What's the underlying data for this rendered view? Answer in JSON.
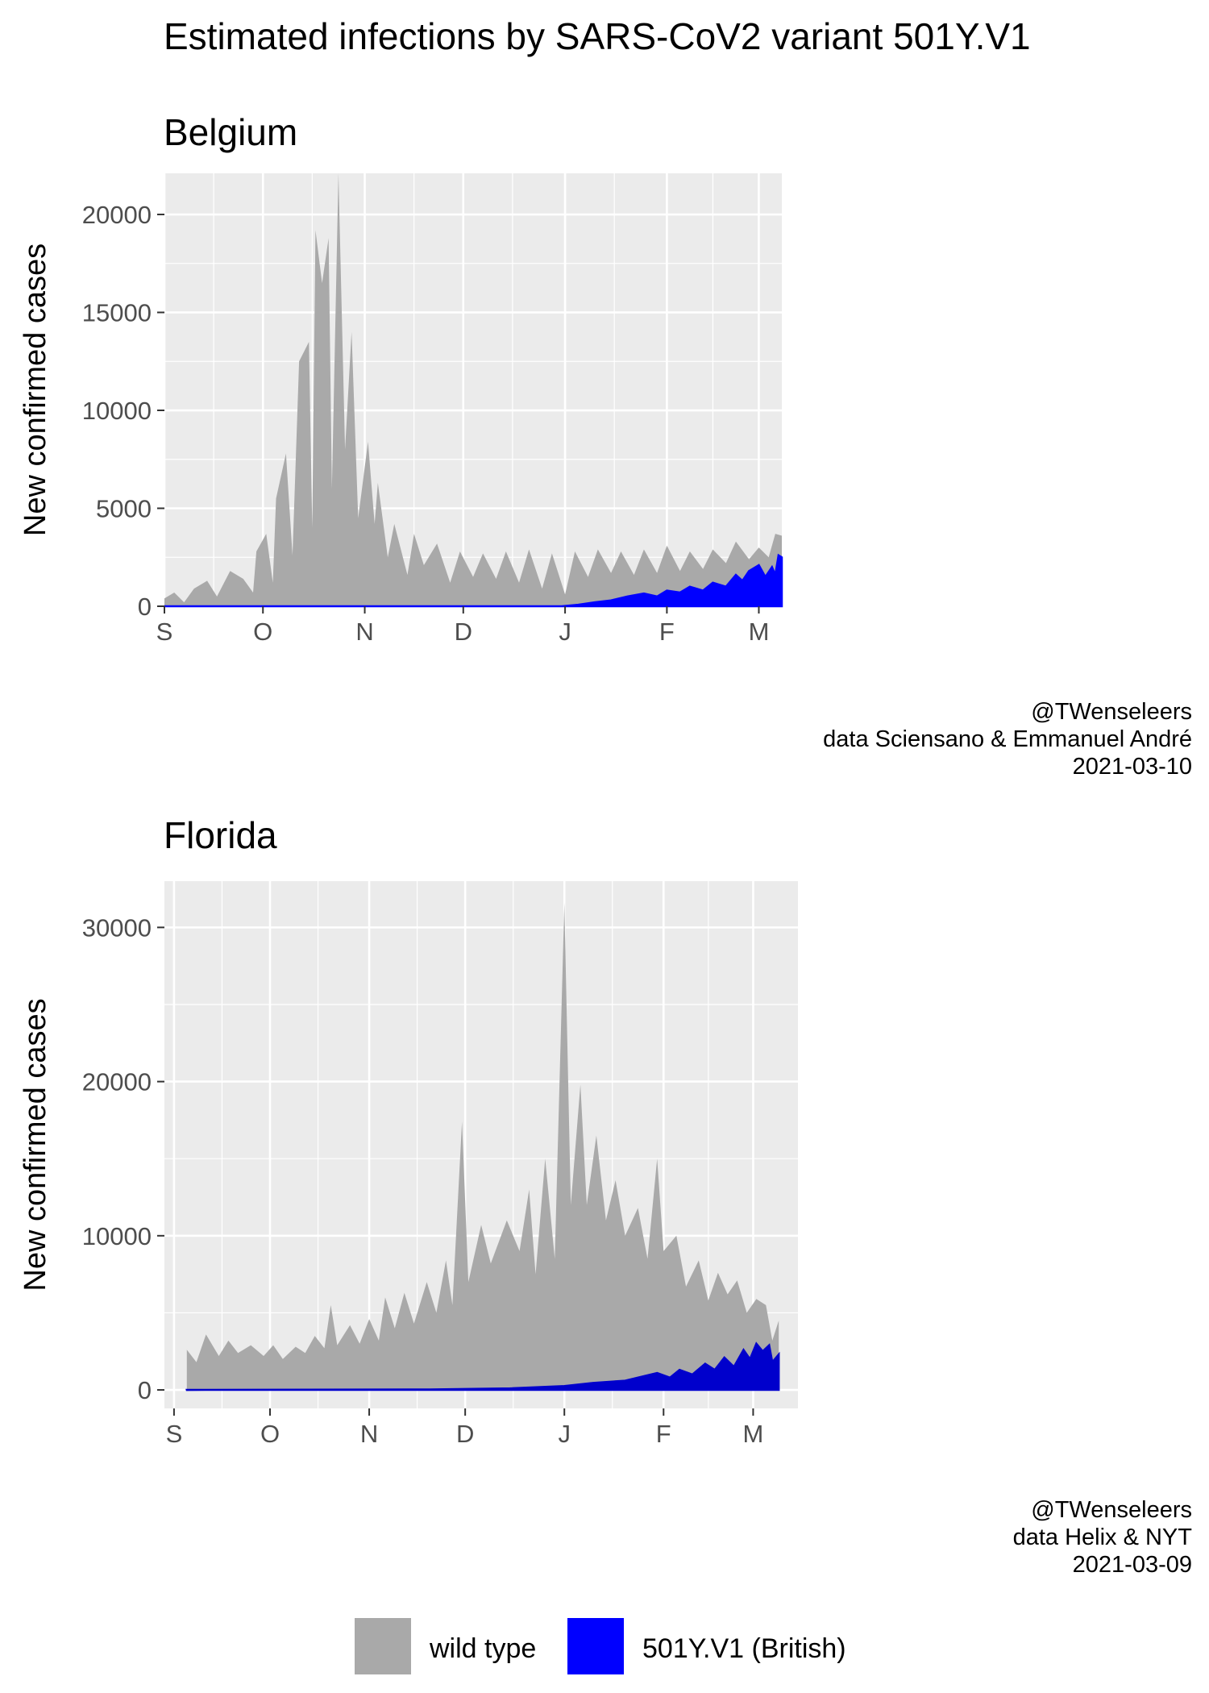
{
  "title": "Estimated infections by SARS-CoV2 variant 501Y.V1",
  "colors": {
    "wild": "#a9a9a9",
    "variant": "#0000ff",
    "variant_florida": "#0000cc",
    "panel_bg": "#ebebeb",
    "grid": "#ffffff"
  },
  "legend": {
    "position": "bottom",
    "items": [
      {
        "label": "wild type",
        "color": "#a9a9a9"
      },
      {
        "label": "501Y.V1 (British)",
        "color": "#0000ff"
      }
    ]
  },
  "chart_data": [
    {
      "type": "area",
      "title": "Belgium",
      "xlabel": "",
      "ylabel": "New confirmed cases",
      "xlim": [
        "2020-09-01",
        "2021-03-08"
      ],
      "ylim": [
        0,
        22100
      ],
      "xticks": [
        "S",
        "O",
        "N",
        "D",
        "J",
        "F",
        "M"
      ],
      "xtick_dates": [
        "2020-09-01",
        "2020-10-01",
        "2020-11-01",
        "2020-12-01",
        "2021-01-01",
        "2021-02-01",
        "2021-03-01"
      ],
      "yticks": [
        "0",
        "5000",
        "10000",
        "15000",
        "20000"
      ],
      "ytick_values": [
        0,
        5000,
        10000,
        15000,
        20000
      ],
      "grid": true,
      "caption": [
        "@TWenseleers",
        "data Sciensano & Emmanuel André",
        "2021-03-10"
      ],
      "series": [
        {
          "name": "wild type",
          "points": [
            [
              "2020-09-01",
              400
            ],
            [
              "2020-09-04",
              700
            ],
            [
              "2020-09-07",
              200
            ],
            [
              "2020-09-10",
              900
            ],
            [
              "2020-09-14",
              1300
            ],
            [
              "2020-09-17",
              500
            ],
            [
              "2020-09-21",
              1800
            ],
            [
              "2020-09-25",
              1400
            ],
            [
              "2020-09-28",
              700
            ],
            [
              "2020-09-29",
              2800
            ],
            [
              "2020-10-02",
              3700
            ],
            [
              "2020-10-04",
              1200
            ],
            [
              "2020-10-05",
              5500
            ],
            [
              "2020-10-08",
              7800
            ],
            [
              "2020-10-10",
              2600
            ],
            [
              "2020-10-12",
              12500
            ],
            [
              "2020-10-15",
              13500
            ],
            [
              "2020-10-16",
              4000
            ],
            [
              "2020-10-17",
              19200
            ],
            [
              "2020-10-19",
              16500
            ],
            [
              "2020-10-21",
              18800
            ],
            [
              "2020-10-22",
              6000
            ],
            [
              "2020-10-24",
              22100
            ],
            [
              "2020-10-26",
              8000
            ],
            [
              "2020-10-28",
              14000
            ],
            [
              "2020-10-30",
              4500
            ],
            [
              "2020-11-02",
              8400
            ],
            [
              "2020-11-04",
              4200
            ],
            [
              "2020-11-05",
              6300
            ],
            [
              "2020-11-08",
              2500
            ],
            [
              "2020-11-10",
              4200
            ],
            [
              "2020-11-14",
              1600
            ],
            [
              "2020-11-16",
              3700
            ],
            [
              "2020-11-19",
              2100
            ],
            [
              "2020-11-23",
              3200
            ],
            [
              "2020-11-27",
              1200
            ],
            [
              "2020-11-30",
              2800
            ],
            [
              "2020-12-04",
              1500
            ],
            [
              "2020-12-07",
              2700
            ],
            [
              "2020-12-11",
              1400
            ],
            [
              "2020-12-14",
              2800
            ],
            [
              "2020-12-18",
              1200
            ],
            [
              "2020-12-21",
              2900
            ],
            [
              "2020-12-25",
              900
            ],
            [
              "2020-12-28",
              2700
            ],
            [
              "2021-01-01",
              600
            ],
            [
              "2021-01-04",
              2800
            ],
            [
              "2021-01-08",
              1500
            ],
            [
              "2021-01-11",
              2900
            ],
            [
              "2021-01-15",
              1700
            ],
            [
              "2021-01-18",
              2800
            ],
            [
              "2021-01-22",
              1600
            ],
            [
              "2021-01-25",
              2900
            ],
            [
              "2021-01-29",
              1700
            ],
            [
              "2021-02-01",
              3100
            ],
            [
              "2021-02-05",
              1800
            ],
            [
              "2021-02-08",
              2800
            ],
            [
              "2021-02-12",
              1900
            ],
            [
              "2021-02-15",
              2900
            ],
            [
              "2021-02-19",
              2200
            ],
            [
              "2021-02-22",
              3300
            ],
            [
              "2021-02-26",
              2400
            ],
            [
              "2021-03-01",
              3000
            ],
            [
              "2021-03-04",
              2500
            ],
            [
              "2021-03-06",
              3700
            ],
            [
              "2021-03-08",
              3600
            ]
          ]
        },
        {
          "name": "501Y.V1 (British)",
          "points": [
            [
              "2020-09-01",
              0
            ],
            [
              "2020-12-31",
              0
            ],
            [
              "2021-01-05",
              80
            ],
            [
              "2021-01-10",
              200
            ],
            [
              "2021-01-15",
              300
            ],
            [
              "2021-01-20",
              500
            ],
            [
              "2021-01-25",
              650
            ],
            [
              "2021-01-29",
              500
            ],
            [
              "2021-02-01",
              800
            ],
            [
              "2021-02-05",
              700
            ],
            [
              "2021-02-08",
              1000
            ],
            [
              "2021-02-12",
              800
            ],
            [
              "2021-02-15",
              1200
            ],
            [
              "2021-02-19",
              1000
            ],
            [
              "2021-02-22",
              1600
            ],
            [
              "2021-02-24",
              1300
            ],
            [
              "2021-02-26",
              1800
            ],
            [
              "2021-03-01",
              2100
            ],
            [
              "2021-03-03",
              1500
            ],
            [
              "2021-03-05",
              2000
            ],
            [
              "2021-03-06",
              1600
            ],
            [
              "2021-03-07",
              2600
            ],
            [
              "2021-03-08",
              2500
            ]
          ]
        }
      ]
    },
    {
      "type": "area",
      "title": "Florida",
      "xlabel": "",
      "ylabel": "New confirmed cases",
      "xlim": [
        "2020-08-29",
        "2021-03-15"
      ],
      "ylim": [
        -1200,
        33000
      ],
      "xticks": [
        "S",
        "O",
        "N",
        "D",
        "J",
        "F",
        "M"
      ],
      "xtick_dates": [
        "2020-09-01",
        "2020-10-01",
        "2020-11-01",
        "2020-12-01",
        "2021-01-01",
        "2021-02-01",
        "2021-03-01"
      ],
      "yticks": [
        "0",
        "10000",
        "20000",
        "30000"
      ],
      "ytick_values": [
        0,
        10000,
        20000,
        30000
      ],
      "grid": true,
      "caption": [
        "@TWenseleers",
        "data Helix & NYT",
        "2021-03-09"
      ],
      "series": [
        {
          "name": "wild type",
          "points": [
            [
              "2020-09-05",
              2600
            ],
            [
              "2020-09-08",
              1800
            ],
            [
              "2020-09-11",
              3600
            ],
            [
              "2020-09-15",
              2200
            ],
            [
              "2020-09-18",
              3200
            ],
            [
              "2020-09-21",
              2400
            ],
            [
              "2020-09-25",
              2900
            ],
            [
              "2020-09-29",
              2200
            ],
            [
              "2020-10-02",
              2900
            ],
            [
              "2020-10-05",
              2000
            ],
            [
              "2020-10-09",
              2800
            ],
            [
              "2020-10-12",
              2400
            ],
            [
              "2020-10-15",
              3500
            ],
            [
              "2020-10-18",
              2700
            ],
            [
              "2020-10-20",
              5500
            ],
            [
              "2020-10-22",
              2900
            ],
            [
              "2020-10-26",
              4200
            ],
            [
              "2020-10-29",
              3000
            ],
            [
              "2020-11-01",
              4600
            ],
            [
              "2020-11-04",
              3200
            ],
            [
              "2020-11-06",
              6000
            ],
            [
              "2020-11-09",
              4000
            ],
            [
              "2020-11-12",
              6300
            ],
            [
              "2020-11-15",
              4300
            ],
            [
              "2020-11-19",
              7000
            ],
            [
              "2020-11-22",
              5000
            ],
            [
              "2020-11-25",
              8400
            ],
            [
              "2020-11-27",
              5500
            ],
            [
              "2020-11-30",
              17400
            ],
            [
              "2020-12-02",
              7000
            ],
            [
              "2020-12-06",
              10700
            ],
            [
              "2020-12-09",
              8200
            ],
            [
              "2020-12-14",
              11000
            ],
            [
              "2020-12-18",
              9000
            ],
            [
              "2020-12-21",
              13000
            ],
            [
              "2020-12-23",
              7500
            ],
            [
              "2020-12-26",
              15000
            ],
            [
              "2020-12-29",
              8500
            ],
            [
              "2021-01-01",
              31600
            ],
            [
              "2021-01-03",
              12000
            ],
            [
              "2021-01-06",
              19800
            ],
            [
              "2021-01-08",
              12000
            ],
            [
              "2021-01-11",
              16500
            ],
            [
              "2021-01-14",
              11000
            ],
            [
              "2021-01-17",
              13600
            ],
            [
              "2021-01-20",
              10000
            ],
            [
              "2021-01-24",
              11800
            ],
            [
              "2021-01-27",
              8500
            ],
            [
              "2021-01-30",
              15000
            ],
            [
              "2021-02-01",
              9000
            ],
            [
              "2021-02-05",
              10000
            ],
            [
              "2021-02-08",
              6700
            ],
            [
              "2021-02-12",
              8400
            ],
            [
              "2021-02-15",
              5800
            ],
            [
              "2021-02-18",
              7600
            ],
            [
              "2021-02-21",
              6200
            ],
            [
              "2021-02-24",
              7100
            ],
            [
              "2021-02-27",
              5000
            ],
            [
              "2021-03-02",
              5900
            ],
            [
              "2021-03-05",
              5500
            ],
            [
              "2021-03-07",
              3200
            ],
            [
              "2021-03-09",
              4500
            ]
          ]
        },
        {
          "name": "501Y.V1 (British)",
          "points": [
            [
              "2020-09-05",
              0
            ],
            [
              "2020-11-20",
              30
            ],
            [
              "2020-12-15",
              100
            ],
            [
              "2021-01-01",
              250
            ],
            [
              "2021-01-10",
              450
            ],
            [
              "2021-01-20",
              600
            ],
            [
              "2021-01-26",
              900
            ],
            [
              "2021-01-30",
              1100
            ],
            [
              "2021-02-03",
              800
            ],
            [
              "2021-02-06",
              1300
            ],
            [
              "2021-02-10",
              1000
            ],
            [
              "2021-02-14",
              1700
            ],
            [
              "2021-02-17",
              1300
            ],
            [
              "2021-02-20",
              2100
            ],
            [
              "2021-02-23",
              1500
            ],
            [
              "2021-02-26",
              2600
            ],
            [
              "2021-02-28",
              2000
            ],
            [
              "2021-03-02",
              3000
            ],
            [
              "2021-03-04",
              2500
            ],
            [
              "2021-03-06",
              2900
            ],
            [
              "2021-03-07",
              1800
            ],
            [
              "2021-03-09",
              2300
            ]
          ]
        }
      ]
    }
  ]
}
